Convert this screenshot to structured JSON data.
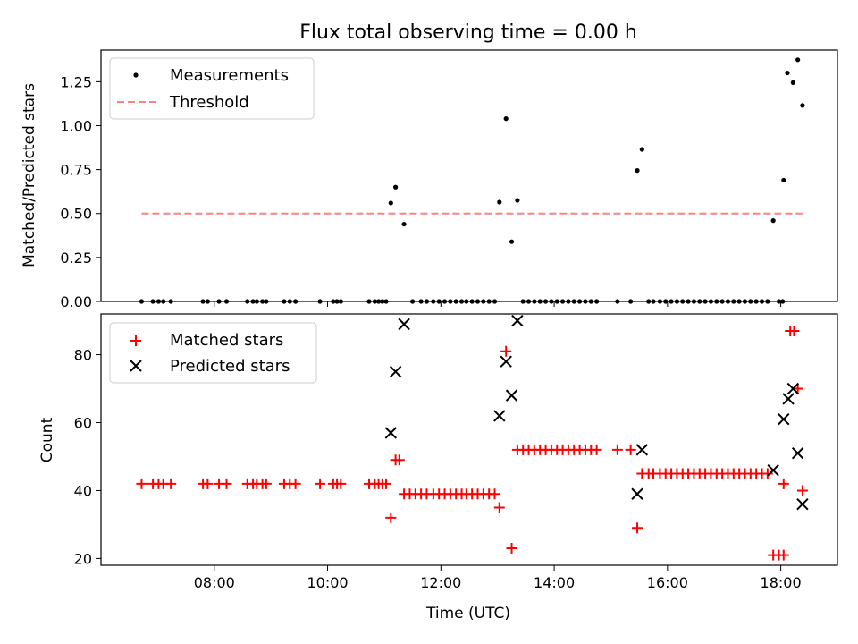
{
  "chart_data": [
    {
      "type": "scatter",
      "title": "Flux total observing time = 0.00 h",
      "ylabel": "Matched/Predicted stars",
      "xlabel": "",
      "xlim": [
        "06:00",
        "19:00"
      ],
      "ylim": [
        0,
        1.43
      ],
      "yticks": [
        0,
        0.25,
        0.5,
        0.75,
        1.0,
        1.25
      ],
      "ytick_labels": [
        "0.00",
        "0.25",
        "0.50",
        "0.75",
        "1.00",
        "1.25"
      ],
      "xticks": [
        "08:00",
        "10:00",
        "12:00",
        "14:00",
        "16:00",
        "18:00"
      ],
      "grid": false,
      "legend_position": "upper-left",
      "series": [
        {
          "name": "Measurements",
          "style": "dots",
          "color": "#000000",
          "points": [
            [
              "06:43",
              0
            ],
            [
              "06:55",
              0
            ],
            [
              "07:01",
              0
            ],
            [
              "07:06",
              0
            ],
            [
              "07:14",
              0
            ],
            [
              "07:48",
              0
            ],
            [
              "07:53",
              0
            ],
            [
              "08:05",
              0
            ],
            [
              "08:13",
              0
            ],
            [
              "08:35",
              0
            ],
            [
              "08:41",
              0
            ],
            [
              "08:45",
              0
            ],
            [
              "08:51",
              0
            ],
            [
              "08:55",
              0
            ],
            [
              "09:14",
              0
            ],
            [
              "09:20",
              0
            ],
            [
              "09:26",
              0
            ],
            [
              "09:52",
              0
            ],
            [
              "10:06",
              0
            ],
            [
              "10:10",
              0
            ],
            [
              "10:14",
              0
            ],
            [
              "10:44",
              0
            ],
            [
              "10:50",
              0
            ],
            [
              "10:54",
              0
            ],
            [
              "10:58",
              0
            ],
            [
              "11:02",
              0
            ],
            [
              "11:07",
              0.56
            ],
            [
              "11:12",
              0.65
            ],
            [
              "11:21",
              0.44
            ],
            [
              "11:30",
              0
            ],
            [
              "11:39",
              0
            ],
            [
              "11:45",
              0
            ],
            [
              "11:52",
              0
            ],
            [
              "11:58",
              0
            ],
            [
              "12:04",
              0
            ],
            [
              "12:10",
              0
            ],
            [
              "12:16",
              0
            ],
            [
              "12:22",
              0
            ],
            [
              "12:27",
              0
            ],
            [
              "12:33",
              0
            ],
            [
              "12:39",
              0
            ],
            [
              "12:45",
              0
            ],
            [
              "12:51",
              0
            ],
            [
              "12:57",
              0
            ],
            [
              "13:02",
              0.565
            ],
            [
              "13:09",
              1.04
            ],
            [
              "13:15",
              0.34
            ],
            [
              "13:21",
              0.575
            ],
            [
              "13:27",
              0
            ],
            [
              "13:33",
              0
            ],
            [
              "13:39",
              0
            ],
            [
              "13:45",
              0
            ],
            [
              "13:51",
              0
            ],
            [
              "13:57",
              0
            ],
            [
              "14:03",
              0
            ],
            [
              "14:09",
              0
            ],
            [
              "14:15",
              0
            ],
            [
              "14:21",
              0
            ],
            [
              "14:27",
              0
            ],
            [
              "14:33",
              0
            ],
            [
              "14:39",
              0
            ],
            [
              "14:45",
              0
            ],
            [
              "15:07",
              0
            ],
            [
              "15:21",
              0
            ],
            [
              "15:28",
              0.745
            ],
            [
              "15:33",
              0.865
            ],
            [
              "15:40",
              0
            ],
            [
              "15:45",
              0
            ],
            [
              "15:52",
              0
            ],
            [
              "15:58",
              0
            ],
            [
              "16:04",
              0
            ],
            [
              "16:10",
              0
            ],
            [
              "16:16",
              0
            ],
            [
              "16:22",
              0
            ],
            [
              "16:28",
              0
            ],
            [
              "16:34",
              0
            ],
            [
              "16:40",
              0
            ],
            [
              "16:46",
              0
            ],
            [
              "16:52",
              0
            ],
            [
              "16:58",
              0
            ],
            [
              "17:04",
              0
            ],
            [
              "17:10",
              0
            ],
            [
              "17:16",
              0
            ],
            [
              "17:22",
              0
            ],
            [
              "17:28",
              0
            ],
            [
              "17:34",
              0
            ],
            [
              "17:40",
              0
            ],
            [
              "17:46",
              0
            ],
            [
              "17:52",
              0.46
            ],
            [
              "17:58",
              0
            ],
            [
              "18:02",
              0
            ],
            [
              "18:03",
              0.69
            ],
            [
              "18:07",
              1.3
            ],
            [
              "18:13",
              1.245
            ],
            [
              "18:18",
              1.375
            ],
            [
              "18:23",
              1.115
            ]
          ]
        },
        {
          "name": "Threshold",
          "style": "dashed-line",
          "color": "#ff8080",
          "points": [
            [
              "06:43",
              0.5
            ],
            [
              "18:23",
              0.5
            ]
          ]
        }
      ]
    },
    {
      "type": "scatter",
      "title": "",
      "ylabel": "Count",
      "xlabel": "Time (UTC)",
      "xlim": [
        "06:00",
        "19:00"
      ],
      "ylim": [
        18,
        92
      ],
      "yticks": [
        20,
        40,
        60,
        80
      ],
      "ytick_labels": [
        "20",
        "40",
        "60",
        "80"
      ],
      "xticks": [
        "08:00",
        "10:00",
        "12:00",
        "14:00",
        "16:00",
        "18:00"
      ],
      "xtick_labels": [
        "08:00",
        "10:00",
        "12:00",
        "14:00",
        "16:00",
        "18:00"
      ],
      "grid": false,
      "legend_position": "upper-left",
      "series": [
        {
          "name": "Matched stars",
          "style": "plus",
          "color": "#ff0000",
          "points": [
            [
              "06:43",
              42
            ],
            [
              "06:55",
              42
            ],
            [
              "07:01",
              42
            ],
            [
              "07:06",
              42
            ],
            [
              "07:14",
              42
            ],
            [
              "07:48",
              42
            ],
            [
              "07:53",
              42
            ],
            [
              "08:05",
              42
            ],
            [
              "08:13",
              42
            ],
            [
              "08:35",
              42
            ],
            [
              "08:41",
              42
            ],
            [
              "08:45",
              42
            ],
            [
              "08:51",
              42
            ],
            [
              "08:55",
              42
            ],
            [
              "09:14",
              42
            ],
            [
              "09:20",
              42
            ],
            [
              "09:26",
              42
            ],
            [
              "09:52",
              42
            ],
            [
              "10:06",
              42
            ],
            [
              "10:10",
              42
            ],
            [
              "10:14",
              42
            ],
            [
              "10:44",
              42
            ],
            [
              "10:50",
              42
            ],
            [
              "10:54",
              42
            ],
            [
              "10:58",
              42
            ],
            [
              "11:02",
              42
            ],
            [
              "11:07",
              32
            ],
            [
              "11:12",
              49
            ],
            [
              "11:16",
              49
            ],
            [
              "11:21",
              39
            ],
            [
              "11:27",
              39
            ],
            [
              "11:33",
              39
            ],
            [
              "11:39",
              39
            ],
            [
              "11:45",
              39
            ],
            [
              "11:52",
              39
            ],
            [
              "11:58",
              39
            ],
            [
              "12:04",
              39
            ],
            [
              "12:10",
              39
            ],
            [
              "12:16",
              39
            ],
            [
              "12:22",
              39
            ],
            [
              "12:27",
              39
            ],
            [
              "12:33",
              39
            ],
            [
              "12:39",
              39
            ],
            [
              "12:45",
              39
            ],
            [
              "12:51",
              39
            ],
            [
              "12:57",
              39
            ],
            [
              "13:02",
              35
            ],
            [
              "13:09",
              81
            ],
            [
              "13:15",
              23
            ],
            [
              "13:21",
              52
            ],
            [
              "13:27",
              52
            ],
            [
              "13:33",
              52
            ],
            [
              "13:39",
              52
            ],
            [
              "13:45",
              52
            ],
            [
              "13:51",
              52
            ],
            [
              "13:57",
              52
            ],
            [
              "14:03",
              52
            ],
            [
              "14:09",
              52
            ],
            [
              "14:15",
              52
            ],
            [
              "14:21",
              52
            ],
            [
              "14:27",
              52
            ],
            [
              "14:33",
              52
            ],
            [
              "14:39",
              52
            ],
            [
              "14:45",
              52
            ],
            [
              "15:07",
              52
            ],
            [
              "15:21",
              52
            ],
            [
              "15:28",
              29
            ],
            [
              "15:33",
              45
            ],
            [
              "15:40",
              45
            ],
            [
              "15:45",
              45
            ],
            [
              "15:52",
              45
            ],
            [
              "15:58",
              45
            ],
            [
              "16:04",
              45
            ],
            [
              "16:10",
              45
            ],
            [
              "16:16",
              45
            ],
            [
              "16:22",
              45
            ],
            [
              "16:28",
              45
            ],
            [
              "16:34",
              45
            ],
            [
              "16:40",
              45
            ],
            [
              "16:46",
              45
            ],
            [
              "16:52",
              45
            ],
            [
              "16:58",
              45
            ],
            [
              "17:04",
              45
            ],
            [
              "17:10",
              45
            ],
            [
              "17:16",
              45
            ],
            [
              "17:22",
              45
            ],
            [
              "17:28",
              45
            ],
            [
              "17:34",
              45
            ],
            [
              "17:40",
              45
            ],
            [
              "17:46",
              45
            ],
            [
              "17:52",
              21
            ],
            [
              "17:58",
              21
            ],
            [
              "18:03",
              21
            ],
            [
              "18:03",
              42
            ],
            [
              "18:10",
              87
            ],
            [
              "18:14",
              87
            ],
            [
              "18:18",
              70
            ],
            [
              "18:23",
              40
            ]
          ]
        },
        {
          "name": "Predicted stars",
          "style": "x",
          "color": "#000000",
          "points": [
            [
              "11:07",
              57
            ],
            [
              "11:12",
              75
            ],
            [
              "11:21",
              89
            ],
            [
              "13:02",
              62
            ],
            [
              "13:09",
              78
            ],
            [
              "13:15",
              68
            ],
            [
              "13:21",
              90
            ],
            [
              "15:28",
              39
            ],
            [
              "15:33",
              52
            ],
            [
              "17:52",
              46
            ],
            [
              "18:03",
              61
            ],
            [
              "18:08",
              67
            ],
            [
              "18:13",
              70
            ],
            [
              "18:18",
              51
            ],
            [
              "18:23",
              36
            ]
          ]
        }
      ]
    }
  ]
}
